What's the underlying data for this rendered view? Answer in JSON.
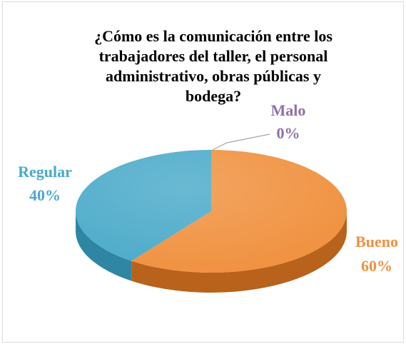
{
  "chart_data": {
    "type": "pie",
    "title_lines": [
      "¿Cómo es la comunicación entre los",
      "trabajadores del taller, el personal",
      "administrativo, obras públicas y",
      "bodega?"
    ],
    "slices": [
      {
        "label": "Bueno",
        "value": 60,
        "value_label": "60%",
        "color": "#f0913f",
        "side_color": "#b8621b"
      },
      {
        "label": "Regular",
        "value": 40,
        "value_label": "40%",
        "color": "#4aaac9",
        "side_color": "#2e86a4"
      },
      {
        "label": "Malo",
        "value": 0,
        "value_label": "0%",
        "color": "#8e71a8",
        "side_color": "#6b5282"
      }
    ],
    "legend": "none",
    "style": "3d-pie"
  }
}
